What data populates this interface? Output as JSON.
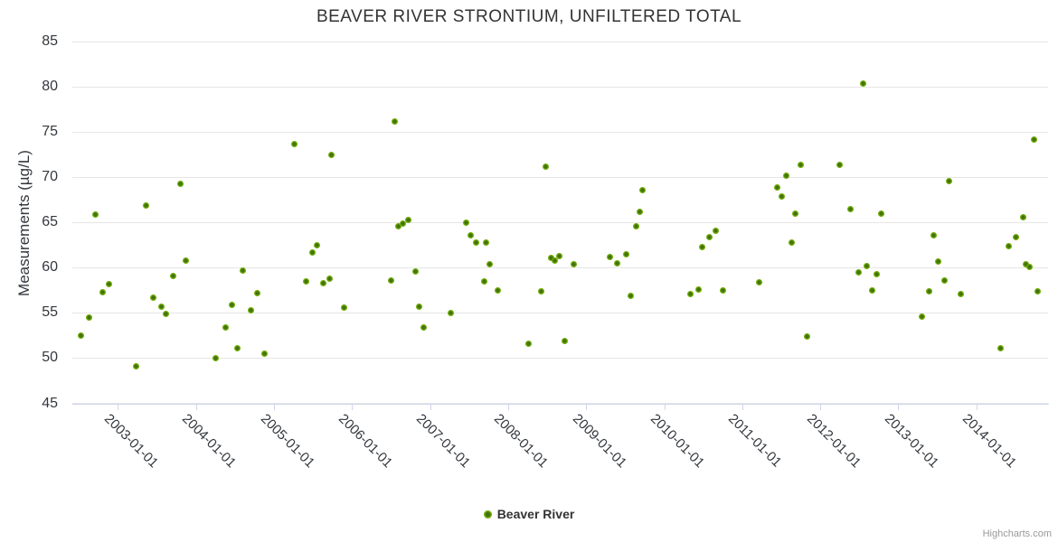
{
  "title": "BEAVER RIVER STRONTIUM, UNFILTERED TOTAL",
  "legend": {
    "series_label": "Beaver River"
  },
  "credits": {
    "label": "Highcharts.com"
  },
  "colors": {
    "marker_outer": "#77b605",
    "marker_core": "#44710d",
    "gridline": "#e6e6e6",
    "axis_line": "#ccd6eb",
    "text": "#333333",
    "credits_text": "#999999"
  },
  "chart_data": {
    "type": "scatter",
    "title": "BEAVER RIVER STRONTIUM, UNFILTERED TOTAL",
    "xlabel": "",
    "ylabel": "Measurements (µg/L)",
    "ylim": [
      45,
      85
    ],
    "y_ticks": [
      85,
      80,
      75,
      70,
      65,
      60,
      55,
      50,
      45
    ],
    "grid": "horizontal-only",
    "legend_position": "bottom-center",
    "x_tick_labels": [
      "2003-01-01",
      "2004-01-01",
      "2005-01-01",
      "2006-01-01",
      "2007-01-01",
      "2008-01-01",
      "2009-01-01",
      "2010-01-01",
      "2011-01-01",
      "2012-01-01",
      "2013-01-01",
      "2014-01-01"
    ],
    "x_tick_years": [
      2003,
      2004,
      2005,
      2006,
      2007,
      2008,
      2009,
      2010,
      2011,
      2012,
      2013,
      2014
    ],
    "xlim_decimal_years": [
      2002.41,
      2014.91
    ],
    "series": [
      {
        "name": "Beaver River",
        "color": "#77b605",
        "points_format": "[decimal_year, value_ug_per_L]",
        "points": [
          [
            2002.52,
            52.5
          ],
          [
            2002.62,
            54.5
          ],
          [
            2002.71,
            65.9
          ],
          [
            2002.8,
            57.3
          ],
          [
            2002.88,
            58.2
          ],
          [
            2003.23,
            49.1
          ],
          [
            2003.36,
            66.9
          ],
          [
            2003.45,
            56.7
          ],
          [
            2003.55,
            55.7
          ],
          [
            2003.61,
            54.9
          ],
          [
            2003.7,
            59.1
          ],
          [
            2003.79,
            69.3
          ],
          [
            2003.86,
            60.8
          ],
          [
            2004.25,
            50.0
          ],
          [
            2004.38,
            53.4
          ],
          [
            2004.46,
            55.9
          ],
          [
            2004.52,
            51.1
          ],
          [
            2004.6,
            59.7
          ],
          [
            2004.7,
            55.3
          ],
          [
            2004.78,
            57.2
          ],
          [
            2004.87,
            50.5
          ],
          [
            2005.25,
            73.7
          ],
          [
            2005.41,
            58.5
          ],
          [
            2005.49,
            61.7
          ],
          [
            2005.54,
            62.5
          ],
          [
            2005.62,
            58.3
          ],
          [
            2005.71,
            58.8
          ],
          [
            2005.73,
            72.5
          ],
          [
            2005.89,
            55.6
          ],
          [
            2006.49,
            58.6
          ],
          [
            2006.54,
            76.2
          ],
          [
            2006.59,
            64.6
          ],
          [
            2006.65,
            64.9
          ],
          [
            2006.72,
            65.3
          ],
          [
            2006.81,
            59.6
          ],
          [
            2006.85,
            55.7
          ],
          [
            2006.91,
            53.4
          ],
          [
            2007.26,
            55.0
          ],
          [
            2007.46,
            65.0
          ],
          [
            2007.51,
            63.6
          ],
          [
            2007.58,
            62.8
          ],
          [
            2007.69,
            58.5
          ],
          [
            2007.71,
            62.8
          ],
          [
            2007.76,
            60.4
          ],
          [
            2007.86,
            57.5
          ],
          [
            2008.26,
            51.6
          ],
          [
            2008.42,
            57.4
          ],
          [
            2008.48,
            71.2
          ],
          [
            2008.54,
            61.1
          ],
          [
            2008.59,
            60.8
          ],
          [
            2008.65,
            61.3
          ],
          [
            2008.72,
            51.9
          ],
          [
            2008.84,
            60.4
          ],
          [
            2009.3,
            61.2
          ],
          [
            2009.39,
            60.5
          ],
          [
            2009.51,
            61.5
          ],
          [
            2009.57,
            56.9
          ],
          [
            2009.63,
            64.6
          ],
          [
            2009.68,
            66.2
          ],
          [
            2009.72,
            68.6
          ],
          [
            2010.33,
            57.1
          ],
          [
            2010.43,
            57.6
          ],
          [
            2010.48,
            62.3
          ],
          [
            2010.57,
            63.4
          ],
          [
            2010.66,
            64.1
          ],
          [
            2010.75,
            57.5
          ],
          [
            2011.21,
            58.4
          ],
          [
            2011.44,
            68.9
          ],
          [
            2011.5,
            67.9
          ],
          [
            2011.56,
            70.2
          ],
          [
            2011.63,
            62.8
          ],
          [
            2011.68,
            66.0
          ],
          [
            2011.74,
            71.4
          ],
          [
            2011.82,
            52.4
          ],
          [
            2012.24,
            71.4
          ],
          [
            2012.38,
            66.5
          ],
          [
            2012.48,
            59.5
          ],
          [
            2012.54,
            80.4
          ],
          [
            2012.59,
            60.2
          ],
          [
            2012.66,
            57.5
          ],
          [
            2012.72,
            59.3
          ],
          [
            2012.77,
            66.0
          ],
          [
            2013.3,
            54.6
          ],
          [
            2013.39,
            57.4
          ],
          [
            2013.45,
            63.6
          ],
          [
            2013.5,
            60.7
          ],
          [
            2013.59,
            58.6
          ],
          [
            2013.65,
            69.6
          ],
          [
            2013.79,
            57.1
          ],
          [
            2014.3,
            51.1
          ],
          [
            2014.41,
            62.4
          ],
          [
            2014.5,
            63.4
          ],
          [
            2014.59,
            65.6
          ],
          [
            2014.63,
            60.4
          ],
          [
            2014.67,
            60.1
          ],
          [
            2014.73,
            74.2
          ],
          [
            2014.78,
            57.4
          ]
        ]
      }
    ]
  }
}
